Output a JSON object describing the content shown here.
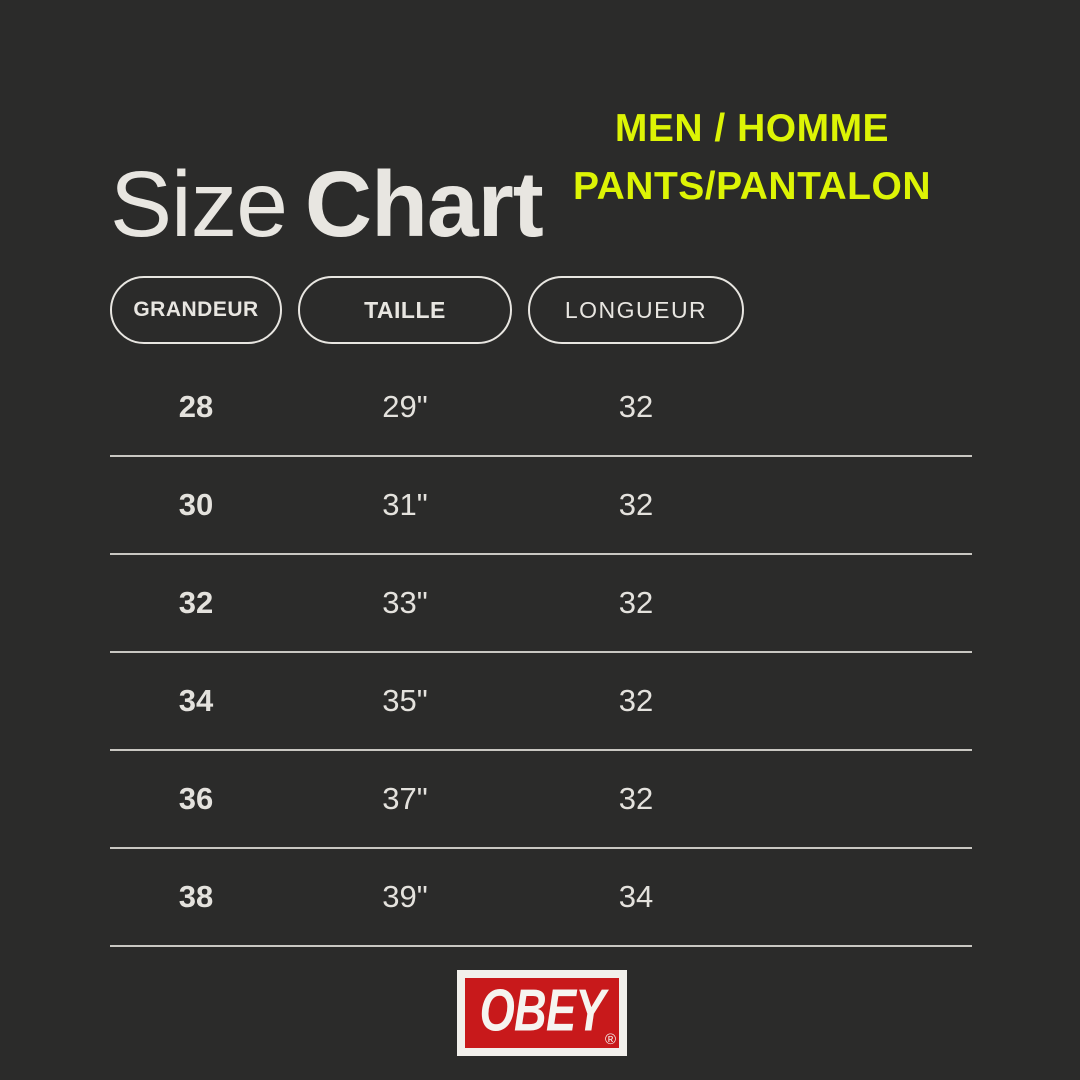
{
  "page": {
    "background_color": "#2b2b2a",
    "text_color": "#e8e6e1",
    "accent_color": "#ddf405",
    "divider_color": "#c9c7c2"
  },
  "header": {
    "title_light": "Size",
    "title_bold": "Chart",
    "subtitle_line1": "MEN / HOMME",
    "subtitle_line2": "PANTS/PANTALON"
  },
  "table": {
    "headers": [
      "GRANDEUR",
      "TAILLE",
      "LONGUEUR"
    ],
    "rows": [
      [
        "28",
        "29\"",
        "32"
      ],
      [
        "30",
        "31\"",
        "32"
      ],
      [
        "32",
        "33\"",
        "32"
      ],
      [
        "34",
        "35\"",
        "32"
      ],
      [
        "36",
        "37\"",
        "32"
      ],
      [
        "38",
        "39\"",
        "34"
      ]
    ]
  },
  "chart_data": {
    "type": "table",
    "title": "Size Chart",
    "subtitle": "MEN / HOMME PANTS/PANTALON",
    "columns": [
      "GRANDEUR",
      "TAILLE",
      "LONGUEUR"
    ],
    "rows": [
      {
        "grandeur": "28",
        "taille": "29\"",
        "longueur": "32"
      },
      {
        "grandeur": "30",
        "taille": "31\"",
        "longueur": "32"
      },
      {
        "grandeur": "32",
        "taille": "33\"",
        "longueur": "32"
      },
      {
        "grandeur": "34",
        "taille": "35\"",
        "longueur": "32"
      },
      {
        "grandeur": "36",
        "taille": "37\"",
        "longueur": "32"
      },
      {
        "grandeur": "38",
        "taille": "39\"",
        "longueur": "34"
      }
    ]
  },
  "logo": {
    "text": "OBEY",
    "registered_mark": "®",
    "red_color": "#c8191b",
    "frame_color": "#f2f0ec"
  }
}
